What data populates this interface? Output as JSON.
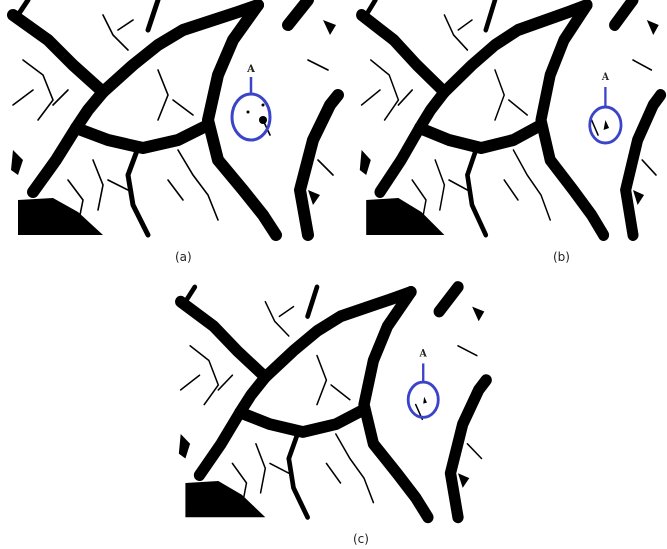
{
  "panels": [
    {
      "caption": "(a)",
      "annotation": "A"
    },
    {
      "caption": "(b)",
      "annotation": "A"
    },
    {
      "caption": "(c)",
      "annotation": "A"
    }
  ]
}
